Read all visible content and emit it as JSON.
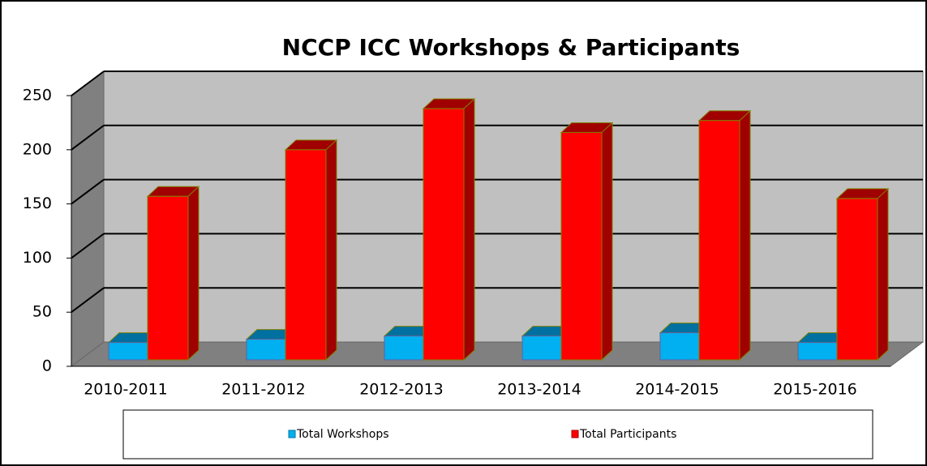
{
  "chart_data": {
    "type": "bar3d",
    "title": "NCCP ICC Workshops & Participants",
    "categories": [
      "2010-2011",
      "2011-2012",
      "2012-2013",
      "2013-2014",
      "2014-2015",
      "2015-2016"
    ],
    "series": [
      {
        "name": "Total Workshops",
        "color": "#00b0f0",
        "values": [
          16,
          19,
          22,
          22,
          25,
          16
        ]
      },
      {
        "name": "Total Participants",
        "color": "#ff0000",
        "values": [
          151,
          194,
          232,
          210,
          221,
          149
        ]
      }
    ],
    "ylim": [
      0,
      250
    ],
    "yticks": [
      0,
      50,
      100,
      150,
      200,
      250
    ],
    "grid": true
  }
}
